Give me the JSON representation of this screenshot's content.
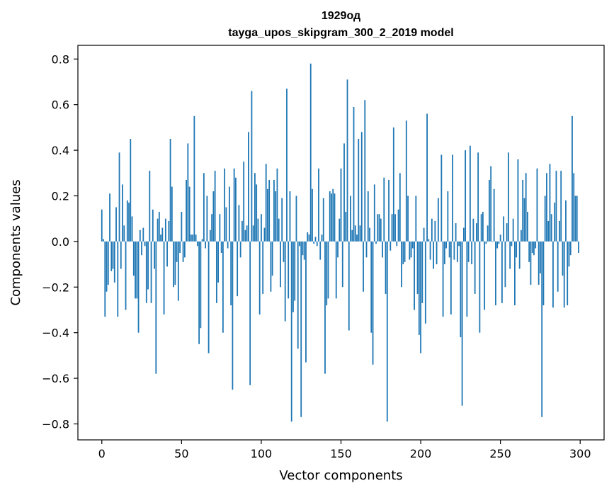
{
  "chart_data": {
    "type": "bar",
    "title": "1929од",
    "subtitle": "tayga_upos_skipgram_300_2_2019 model",
    "xlabel": "Vector components",
    "ylabel": "Components values",
    "xlim": [
      -15,
      315
    ],
    "ylim": [
      -0.87,
      0.86
    ],
    "xticks": [
      0,
      50,
      100,
      150,
      200,
      250,
      300
    ],
    "xtick_labels": [
      "0",
      "50",
      "100",
      "150",
      "200",
      "250",
      "300"
    ],
    "yticks": [
      -0.8,
      -0.6,
      -0.4,
      -0.2,
      0.0,
      0.2,
      0.4,
      0.6,
      0.8
    ],
    "ytick_labels": [
      "−0.8",
      "−0.6",
      "−0.4",
      "−0.2",
      "0.0",
      "0.2",
      "0.4",
      "0.6",
      "0.8"
    ],
    "bar_color": "#1f77b4",
    "grid": false,
    "values": [
      0.14,
      0.01,
      -0.33,
      -0.22,
      -0.19,
      0.21,
      -0.13,
      -0.12,
      -0.18,
      0.15,
      -0.33,
      0.39,
      -0.12,
      0.25,
      0.07,
      -0.3,
      0.18,
      0.17,
      0.45,
      0.11,
      -0.15,
      -0.25,
      -0.25,
      -0.4,
      0.05,
      -0.06,
      0.06,
      -0.02,
      -0.27,
      -0.21,
      0.31,
      -0.27,
      0.14,
      -0.12,
      -0.58,
      0.1,
      0.13,
      0.03,
      0.06,
      -0.32,
      0.1,
      -0.11,
      0.09,
      0.45,
      0.24,
      -0.2,
      -0.19,
      -0.09,
      -0.26,
      -0.05,
      0.13,
      -0.09,
      -0.07,
      0.27,
      0.43,
      0.24,
      0.03,
      0.03,
      0.55,
      0.03,
      -0.02,
      -0.45,
      -0.38,
      0.01,
      0.3,
      -0.03,
      0.2,
      -0.49,
      0.05,
      0.12,
      0.22,
      0.31,
      -0.27,
      -0.18,
      0.12,
      -0.05,
      -0.4,
      0.32,
      0.15,
      -0.03,
      0.24,
      -0.28,
      -0.65,
      0.32,
      0.28,
      -0.24,
      0.16,
      -0.07,
      0.09,
      0.35,
      0.05,
      0.07,
      0.48,
      -0.63,
      0.66,
      0.07,
      0.3,
      0.25,
      0.1,
      -0.32,
      0.12,
      -0.23,
      0.06,
      0.34,
      0.23,
      0.27,
      -0.22,
      -0.15,
      0.27,
      0.22,
      0.32,
      0.1,
      -0.2,
      0.19,
      -0.09,
      -0.35,
      0.67,
      -0.25,
      0.22,
      -0.79,
      -0.31,
      -0.26,
      0.2,
      -0.47,
      -0.02,
      -0.77,
      -0.06,
      -0.08,
      -0.53,
      0.04,
      0.03,
      0.78,
      0.23,
      -0.01,
      0.02,
      -0.02,
      0.32,
      -0.08,
      0.03,
      0.19,
      -0.58,
      -0.28,
      -0.25,
      0.22,
      0.21,
      0.23,
      0.21,
      -0.25,
      -0.07,
      0.1,
      0.32,
      -0.2,
      0.43,
      0.13,
      0.71,
      -0.39,
      0.2,
      0.05,
      0.59,
      0.07,
      0.03,
      0.45,
      0.07,
      0.48,
      -0.22,
      0.62,
      -0.07,
      0.22,
      0.06,
      -0.4,
      -0.54,
      0.25,
      -0.01,
      0.12,
      0.12,
      0.1,
      -0.07,
      0.28,
      -0.23,
      -0.79,
      0.27,
      -0.04,
      0.12,
      0.5,
      0.12,
      -0.02,
      0.14,
      0.3,
      -0.2,
      -0.1,
      -0.09,
      0.53,
      0.2,
      -0.08,
      -0.07,
      -0.03,
      -0.3,
      0.2,
      -0.23,
      -0.41,
      -0.49,
      -0.27,
      0.06,
      -0.36,
      0.56,
      0.01,
      -0.08,
      0.1,
      -0.12,
      0.09,
      -0.1,
      0.19,
      0.0,
      0.38,
      -0.33,
      -0.1,
      -0.03,
      0.22,
      -0.07,
      -0.32,
      0.38,
      -0.08,
      0.08,
      -0.09,
      -0.02,
      -0.42,
      -0.72,
      0.06,
      0.4,
      -0.33,
      -0.09,
      0.42,
      -0.1,
      0.1,
      -0.23,
      0.08,
      0.39,
      -0.4,
      0.12,
      0.13,
      -0.3,
      -0.01,
      0.07,
      0.27,
      0.33,
      0.0,
      0.23,
      -0.28,
      -0.03,
      -0.01,
      0.03,
      -0.27,
      0.11,
      -0.2,
      0.08,
      0.39,
      -0.12,
      -0.02,
      0.1,
      -0.28,
      -0.07,
      0.36,
      -0.12,
      0.05,
      0.27,
      0.19,
      0.3,
      0.13,
      -0.09,
      -0.19,
      -0.05,
      -0.06,
      -0.03,
      0.32,
      -0.19,
      -0.14,
      -0.77,
      -0.28,
      0.2,
      0.3,
      0.09,
      0.34,
      0.12,
      -0.29,
      0.17,
      0.31,
      -0.22,
      0.09,
      0.31,
      -0.15,
      -0.29,
      0.18,
      -0.28,
      -0.11,
      -0.06,
      0.55,
      0.3,
      0.2,
      0.2,
      -0.05
    ]
  }
}
